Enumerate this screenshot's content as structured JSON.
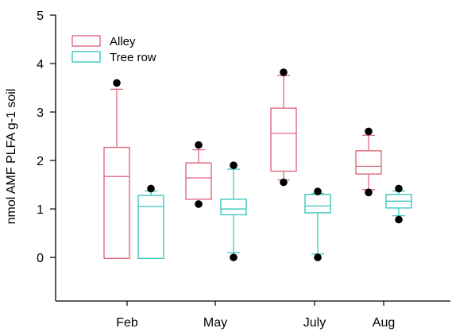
{
  "chart_data": {
    "type": "box",
    "title": "",
    "xlabel": "",
    "ylabel": "nmol AMF PLFA g-1 soil",
    "ylim": [
      -0.9,
      5
    ],
    "yticks": [
      0,
      1,
      2,
      3,
      4,
      5
    ],
    "grid": false,
    "legend": {
      "position": "top-left"
    },
    "categories": [
      "Feb",
      "May",
      "July",
      "Aug"
    ],
    "series": [
      {
        "name": "Alley",
        "color": "#e06a80",
        "boxes": [
          {
            "whisker_low": -0.02,
            "q1": -0.02,
            "median": 1.67,
            "q3": 2.27,
            "whisker_high": 3.47,
            "outliers": [
              3.6
            ]
          },
          {
            "whisker_low": 1.2,
            "q1": 1.2,
            "median": 1.64,
            "q3": 1.95,
            "whisker_high": 2.22,
            "outliers": [
              1.1,
              2.32
            ]
          },
          {
            "whisker_low": 1.6,
            "q1": 1.78,
            "median": 2.56,
            "q3": 3.08,
            "whisker_high": 3.75,
            "outliers": [
              1.55,
              3.82
            ]
          },
          {
            "whisker_low": 1.4,
            "q1": 1.72,
            "median": 1.88,
            "q3": 2.2,
            "whisker_high": 2.52,
            "outliers": [
              1.34,
              2.6
            ]
          }
        ]
      },
      {
        "name": "Tree row",
        "color": "#3cc8c0",
        "boxes": [
          {
            "whisker_low": -0.02,
            "q1": -0.02,
            "median": 1.05,
            "q3": 1.28,
            "whisker_high": 1.37,
            "outliers": [
              1.42
            ]
          },
          {
            "whisker_low": 0.1,
            "q1": 0.88,
            "median": 1.0,
            "q3": 1.2,
            "whisker_high": 1.82,
            "outliers": [
              0.0,
              1.9
            ]
          },
          {
            "whisker_low": 0.07,
            "q1": 0.92,
            "median": 1.06,
            "q3": 1.3,
            "whisker_high": 1.32,
            "outliers": [
              0.0,
              1.36
            ]
          },
          {
            "whisker_low": 0.86,
            "q1": 1.02,
            "median": 1.16,
            "q3": 1.3,
            "whisker_high": 1.37,
            "outliers": [
              0.78,
              1.42
            ]
          }
        ]
      }
    ]
  }
}
